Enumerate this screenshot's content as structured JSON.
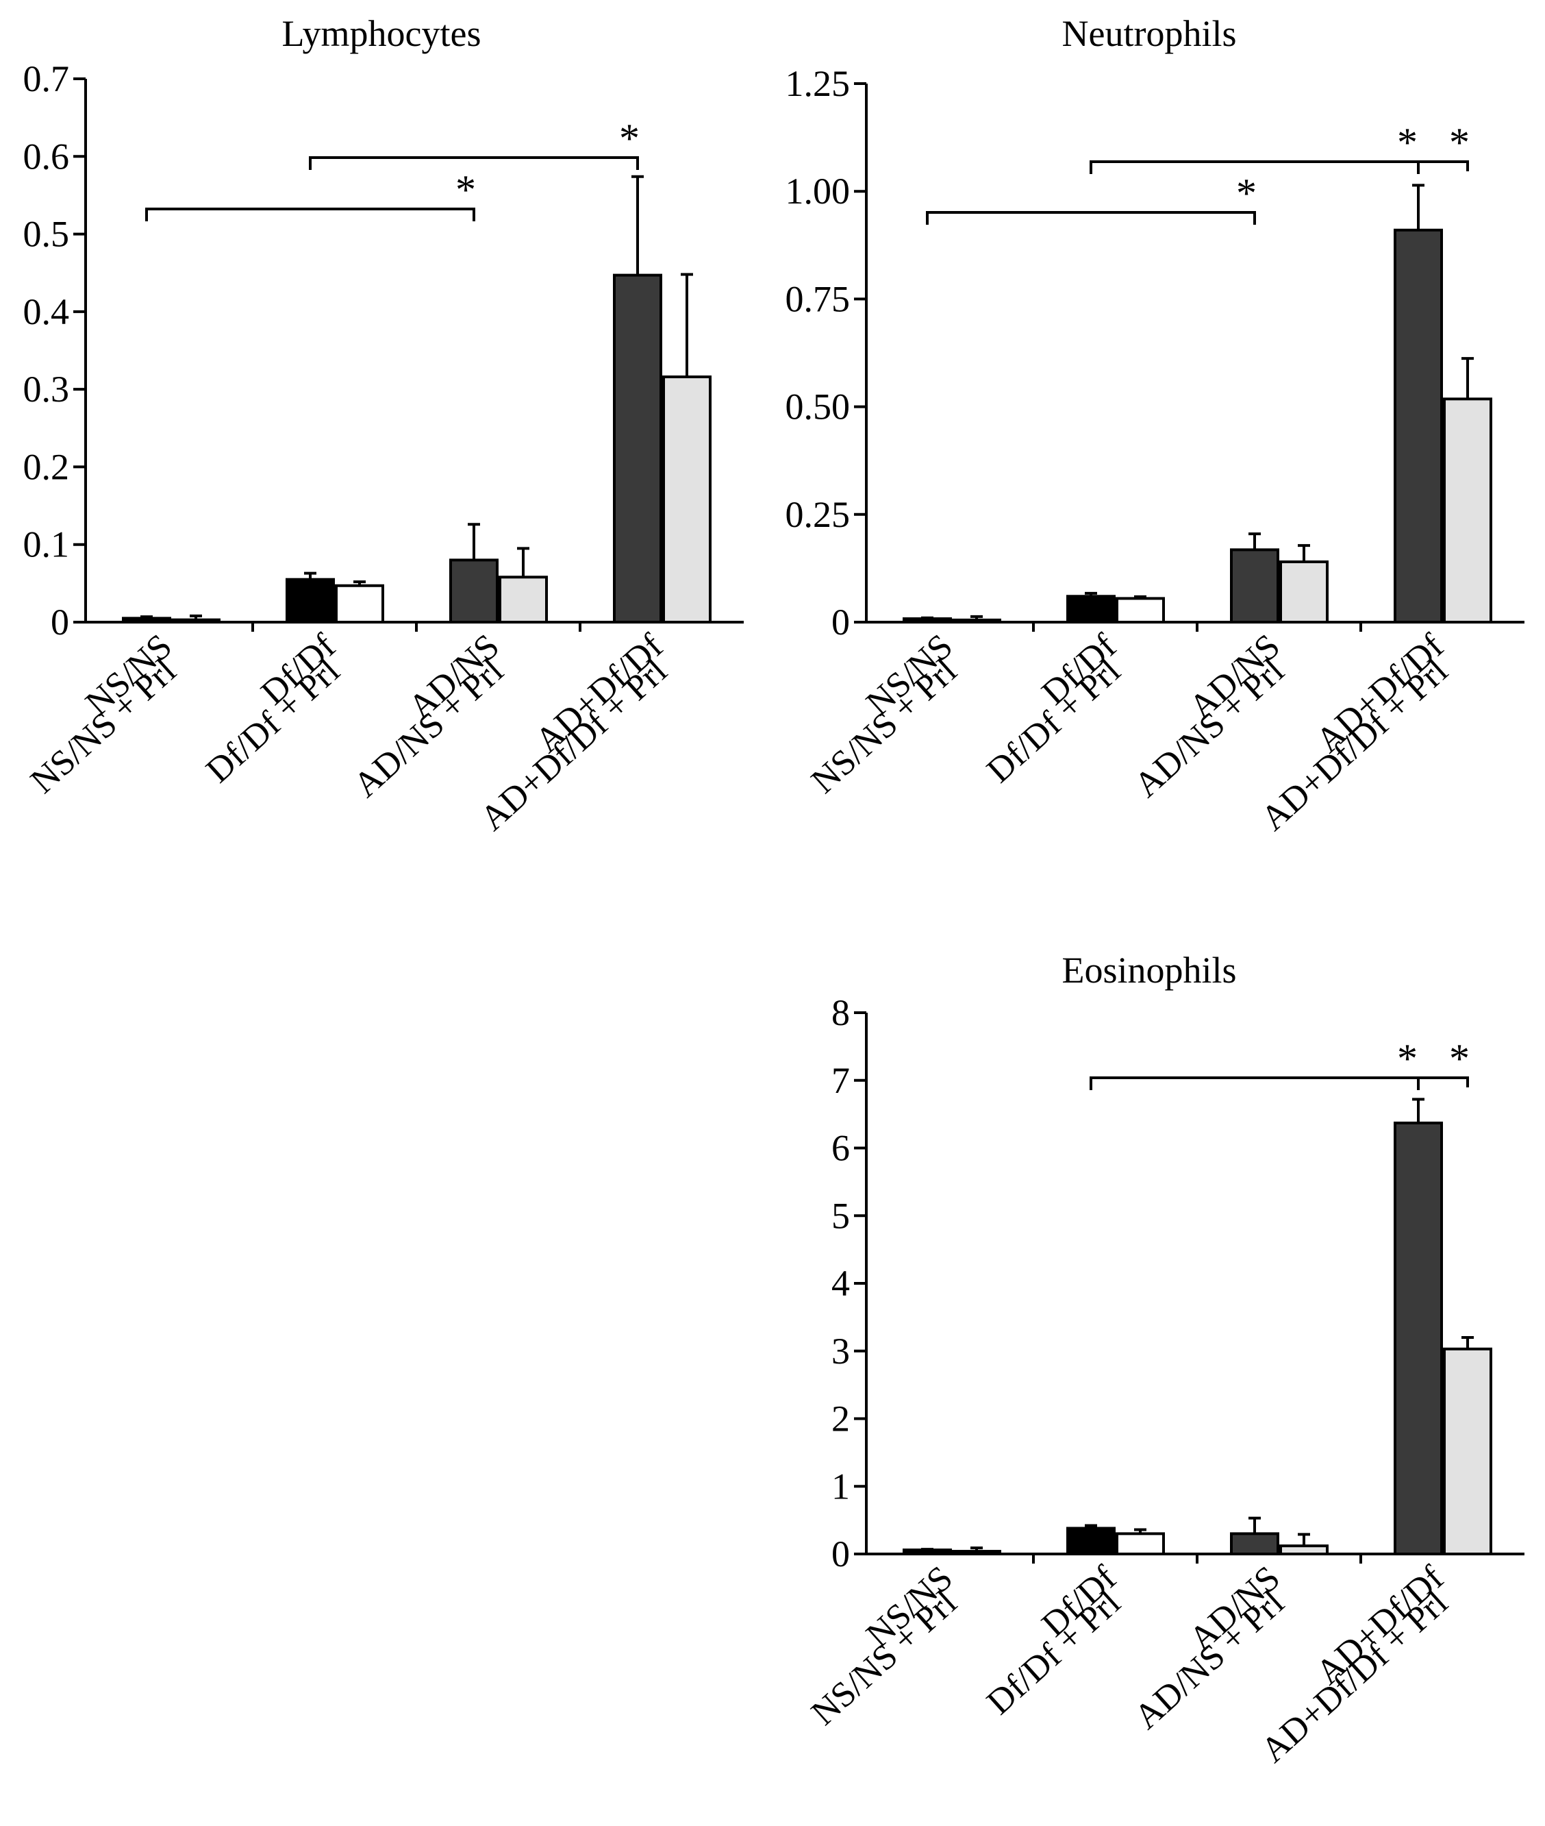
{
  "colors": {
    "AD+Df/Df": "#3a3a3a",
    "AD/NS": "#3a3a3a",
    "AD/NS + Prl": "#e2e2e2",
    "AD+Df/Df + Prl": "#e2e2e2",
    "Df/Df": "#000000",
    "Df/Df + Prl": "#ffffff",
    "NS/NS": "#000000",
    "NS/NS + Prl": "#ffffff",
    "outline": "#000000"
  },
  "chart_data": [
    {
      "type": "bar",
      "title": "Lymphocytes",
      "xlabel": "",
      "ylabel": "",
      "ylim": [
        0,
        0.7
      ],
      "yticks": [
        "0",
        "0.1",
        "0.2",
        "0.3",
        "0.4",
        "0.5",
        "0.6",
        "0.7"
      ],
      "categories": [
        "NS/NS",
        "NS/NS + Prl",
        "Df/Df",
        "Df/Df + Prl",
        "AD/NS",
        "AD/NS + Prl",
        "AD+Df/Df",
        "AD+Df/Df + Prl"
      ],
      "values": [
        0.005,
        0.003,
        0.055,
        0.047,
        0.08,
        0.058,
        0.447,
        0.316
      ],
      "errors": [
        0.002,
        0.005,
        0.008,
        0.005,
        0.046,
        0.037,
        0.127,
        0.132
      ],
      "significance": [
        {
          "from": 0,
          "to": 4,
          "label": "*"
        },
        {
          "from": 2,
          "to": 6,
          "label": "*"
        }
      ]
    },
    {
      "type": "bar",
      "title": "Neutrophils",
      "xlabel": "",
      "ylabel": "",
      "ylim": [
        0,
        1.25
      ],
      "yticks": [
        "0",
        "0.25",
        "0.50",
        "0.75",
        "1.00",
        "1.25"
      ],
      "categories": [
        "NS/NS",
        "NS/NS + Prl",
        "Df/Df",
        "Df/Df + Prl",
        "AD/NS",
        "AD/NS + Prl",
        "AD+Df/Df",
        "AD+Df/Df + Prl"
      ],
      "values": [
        0.008,
        0.005,
        0.06,
        0.055,
        0.168,
        0.14,
        0.91,
        0.518
      ],
      "errors": [
        0.002,
        0.008,
        0.007,
        0.004,
        0.037,
        0.038,
        0.104,
        0.094
      ],
      "significance": [
        {
          "from": 0,
          "to": 4,
          "label": "*"
        },
        {
          "from": 2,
          "to": 6,
          "label": "*"
        },
        {
          "from": 6,
          "to": 7,
          "label": "*"
        }
      ]
    },
    {
      "type": "bar",
      "title": "Eosinophils",
      "xlabel": "",
      "ylabel": "",
      "ylim": [
        0,
        8
      ],
      "yticks": [
        "0",
        "1",
        "2",
        "3",
        "4",
        "5",
        "6",
        "7",
        "8"
      ],
      "categories": [
        "NS/NS",
        "NS/NS + Prl",
        "Df/Df",
        "Df/Df + Prl",
        "AD/NS",
        "AD/NS + Prl",
        "AD+Df/Df",
        "AD+Df/Df + Prl"
      ],
      "values": [
        0.06,
        0.04,
        0.38,
        0.3,
        0.3,
        0.12,
        6.37,
        3.03
      ],
      "errors": [
        0.01,
        0.05,
        0.04,
        0.06,
        0.23,
        0.17,
        0.35,
        0.17
      ],
      "significance": [
        {
          "from": 2,
          "to": 6,
          "label": "*"
        },
        {
          "from": 6,
          "to": 7,
          "label": "*"
        }
      ]
    }
  ]
}
